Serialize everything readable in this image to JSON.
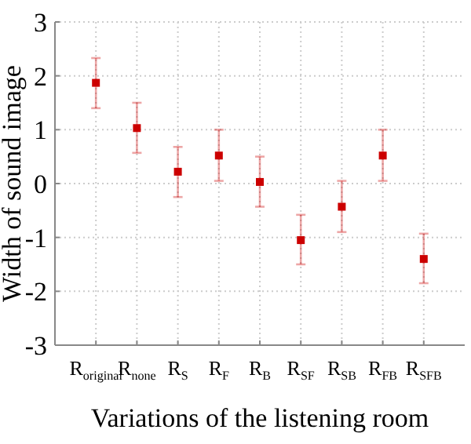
{
  "chart_data": {
    "type": "scatter",
    "xlabel": "Variations of the listening room",
    "ylabel": "Width of sound image",
    "categories": [
      "R$_{original}$",
      "R$_{none}$",
      "R$_{S}$",
      "R$_{F}$",
      "R$_{B}$",
      "R$_{SF}$",
      "R$_{SB}$",
      "R$_{FB}$",
      "R$_{SFB}$"
    ],
    "series": [
      {
        "color": "#cc0000",
        "values": [
          1.87,
          1.03,
          0.22,
          0.52,
          0.03,
          -1.05,
          -0.43,
          0.52,
          -1.4
        ],
        "errors": [
          [
            1.4,
            2.33
          ],
          [
            0.57,
            1.5
          ],
          [
            -0.25,
            0.68
          ],
          [
            0.05,
            1.0
          ],
          [
            -0.43,
            0.5
          ],
          [
            -1.5,
            -0.58
          ],
          [
            -0.9,
            0.05
          ],
          [
            0.05,
            1.0
          ],
          [
            -1.85,
            -0.93
          ]
        ]
      }
    ],
    "ylim": [
      -3,
      3
    ],
    "yticks": [
      -3,
      -2,
      -1,
      0,
      1,
      2,
      3
    ],
    "grid": true,
    "marker": "square"
  }
}
